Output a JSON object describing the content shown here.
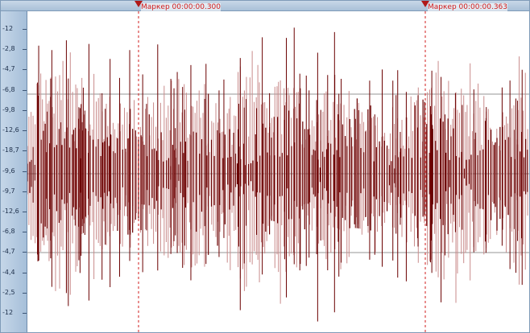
{
  "editor": {
    "corner_icon": "▸",
    "markers": [
      {
        "label": "Маркер 00:00:00.300",
        "time": 0.3
      },
      {
        "label": "Маркер 00:00:00.363",
        "time": 0.363
      }
    ],
    "scale_labels": [
      "-12",
      "-2,8",
      "-4,7",
      "-6,8",
      "-9,8",
      "-12,6",
      "-18,7",
      "-9,6",
      "-9,7",
      "-12,6",
      "-6,8",
      "-4,7",
      "-4,4",
      "-2,5",
      "-12"
    ]
  },
  "colors": {
    "waveform_dark": "#6b0000",
    "waveform_light": "#c98b8b",
    "marker": "#d11c1c",
    "grid": "#2b2b2b",
    "scale_bg": "#b7cbe0"
  }
}
